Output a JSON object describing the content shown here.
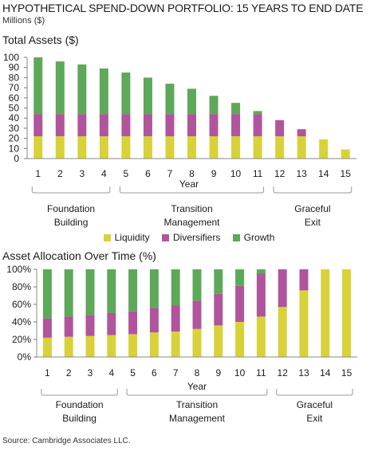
{
  "header": {
    "title": "HYPOTHETICAL SPEND-DOWN PORTFOLIO: 15 YEARS TO END DATE",
    "subtitle": "Millions ($)"
  },
  "footer": {
    "source": "Source: Cambridge Associates LLC."
  },
  "colors": {
    "liquidity": "#d8d23a",
    "diversifiers": "#b0559c",
    "growth": "#5ea85a"
  },
  "chart_data": [
    {
      "type": "bar",
      "stacked": true,
      "title": "Total Assets ($)",
      "xlabel": "Year",
      "ylabel": "",
      "ylim": [
        0,
        100
      ],
      "yticks": [
        0,
        10,
        20,
        30,
        40,
        50,
        60,
        70,
        80,
        90,
        100
      ],
      "categories": [
        "1",
        "2",
        "3",
        "4",
        "5",
        "6",
        "7",
        "8",
        "9",
        "10",
        "11",
        "12",
        "13",
        "14",
        "15"
      ],
      "series": [
        {
          "name": "Liquidity",
          "values": [
            22,
            22,
            22,
            22,
            22,
            22,
            22,
            22,
            22,
            22,
            22,
            22,
            22,
            19,
            9
          ]
        },
        {
          "name": "Diversifiers",
          "values": [
            22,
            22,
            22,
            22,
            22,
            22,
            22,
            22,
            22,
            22,
            22,
            16,
            7,
            0,
            0
          ]
        },
        {
          "name": "Growth",
          "values": [
            56,
            52,
            49,
            45,
            41,
            36,
            30,
            25,
            18,
            11,
            3,
            0,
            0,
            0,
            0
          ]
        }
      ],
      "phases": [
        {
          "label": [
            "Foundation",
            "Building"
          ],
          "years": [
            1,
            4
          ]
        },
        {
          "label": [
            "Transition",
            "Management"
          ],
          "years": [
            5,
            11
          ]
        },
        {
          "label": [
            "Graceful",
            "Exit"
          ],
          "years": [
            12,
            15
          ]
        }
      ],
      "legend": "bottom"
    },
    {
      "type": "bar",
      "stacked": true,
      "title": "Asset Allocation Over Time (%)",
      "xlabel": "Year",
      "ylabel": "",
      "ylim": [
        0,
        100
      ],
      "yticks": [
        "0%",
        "20%",
        "40%",
        "60%",
        "80%",
        "100%"
      ],
      "categories": [
        "1",
        "2",
        "3",
        "4",
        "5",
        "6",
        "7",
        "8",
        "9",
        "10",
        "11",
        "12",
        "13",
        "14",
        "15"
      ],
      "series": [
        {
          "name": "Liquidity",
          "values": [
            22,
            23,
            24,
            25,
            26,
            28,
            29,
            32,
            36,
            40,
            46,
            57,
            76,
            100,
            100
          ]
        },
        {
          "name": "Diversifiers",
          "values": [
            22,
            23,
            24,
            25,
            26,
            28,
            30,
            32,
            36,
            41,
            49,
            43,
            24,
            0,
            0
          ]
        },
        {
          "name": "Growth",
          "values": [
            56,
            54,
            52,
            50,
            48,
            44,
            41,
            36,
            28,
            19,
            5,
            0,
            0,
            0,
            0
          ]
        }
      ],
      "phases": [
        {
          "label": [
            "Foundation",
            "Building"
          ],
          "years": [
            1,
            4
          ]
        },
        {
          "label": [
            "Transition",
            "Management"
          ],
          "years": [
            5,
            11
          ]
        },
        {
          "label": [
            "Graceful",
            "Exit"
          ],
          "years": [
            12,
            15
          ]
        }
      ]
    }
  ]
}
